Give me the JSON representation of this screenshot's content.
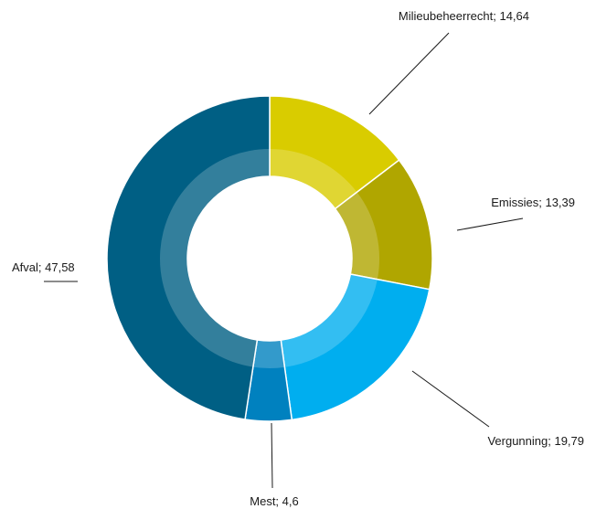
{
  "chart_data": {
    "type": "pie",
    "subtype": "donut",
    "title": "",
    "categories": [
      "Milieubeheerrecht",
      "Emissies",
      "Vergunning",
      "Mest",
      "Afval"
    ],
    "values": [
      14.64,
      13.39,
      19.79,
      4.6,
      47.58
    ],
    "value_labels": [
      "14,64",
      "13,39",
      "19,79",
      "4,6",
      "47,58"
    ],
    "label_separator": "; ",
    "colors": [
      "#d9cc00",
      "#b0a600",
      "#00aeef",
      "#0081bf",
      "#005f84"
    ],
    "start_angle": "12 o'clock",
    "direction": "clockwise",
    "legend": "none",
    "labels_with_leader_lines": true
  }
}
